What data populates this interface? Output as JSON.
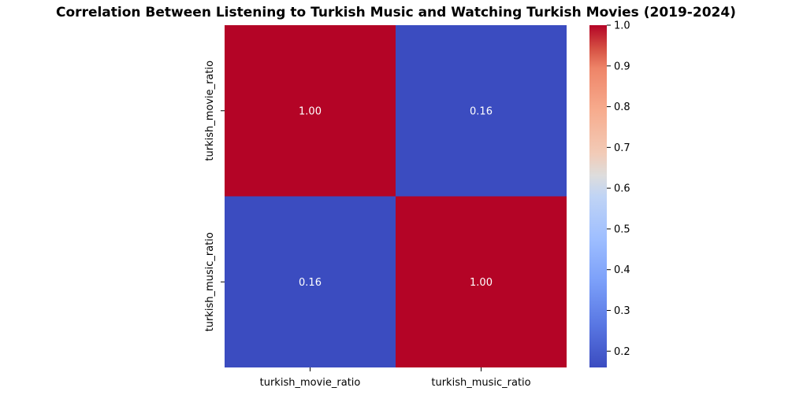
{
  "chart_data": {
    "type": "heatmap",
    "title": "Correlation Between Listening to Turkish Music and Watching Turkish Movies (2019-2024)",
    "row_labels": [
      "turkish_movie_ratio",
      "turkish_music_ratio"
    ],
    "col_labels": [
      "turkish_movie_ratio",
      "turkish_music_ratio"
    ],
    "values": [
      [
        1.0,
        0.16
      ],
      [
        0.16,
        1.0
      ]
    ],
    "cell_labels": [
      [
        "1.00",
        "0.16"
      ],
      [
        "0.16",
        "1.00"
      ]
    ],
    "colormap": "coolwarm",
    "colorbar": {
      "min": 0.16,
      "max": 1.0,
      "ticks": [
        0.2,
        0.3,
        0.4,
        0.5,
        0.6,
        0.7,
        0.8,
        0.9,
        1.0
      ],
      "tick_labels": [
        "0.2",
        "0.3",
        "0.4",
        "0.5",
        "0.6",
        "0.7",
        "0.8",
        "0.9",
        "1.0"
      ]
    },
    "colors": {
      "low": "#3b4cc0",
      "mid": "#dddddd",
      "high": "#b40426"
    }
  }
}
